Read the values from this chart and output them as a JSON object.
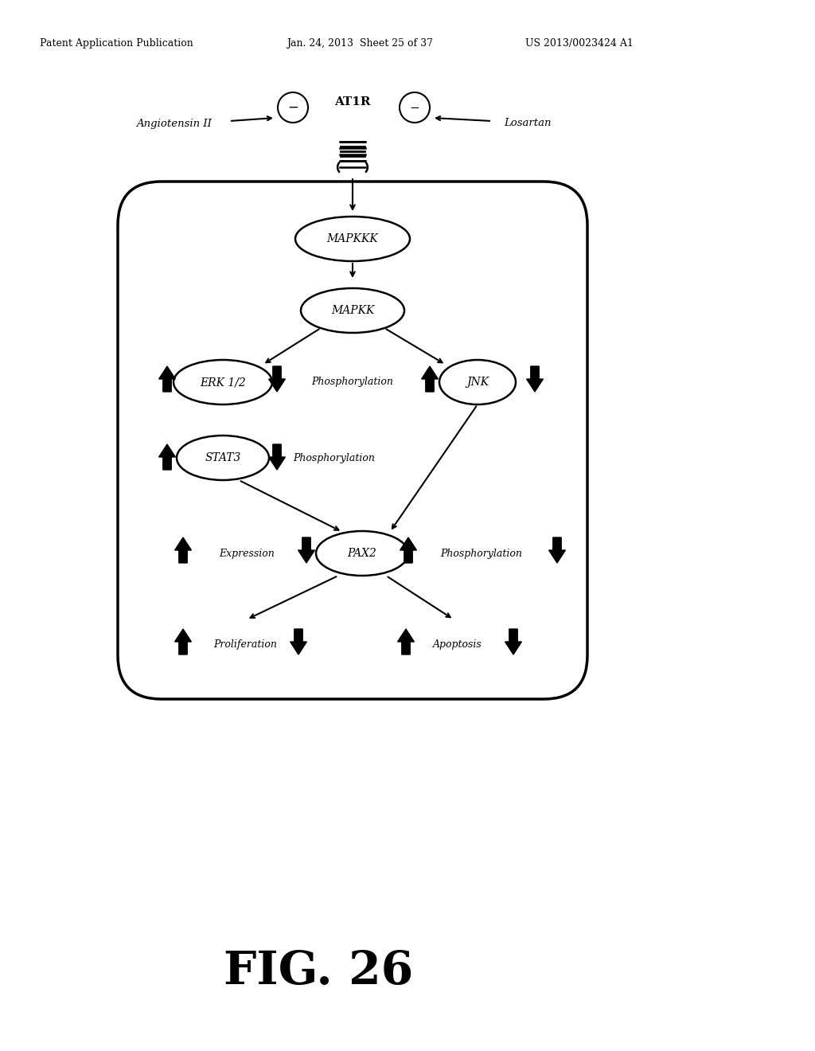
{
  "header_left": "Patent Application Publication",
  "header_mid": "Jan. 24, 2013  Sheet 25 of 37",
  "header_right": "US 2013/0023424 A1",
  "fig_label": "FIG. 26",
  "bg_color": "#ffffff",
  "figw": 10.24,
  "figh": 13.2,
  "dpi": 100
}
